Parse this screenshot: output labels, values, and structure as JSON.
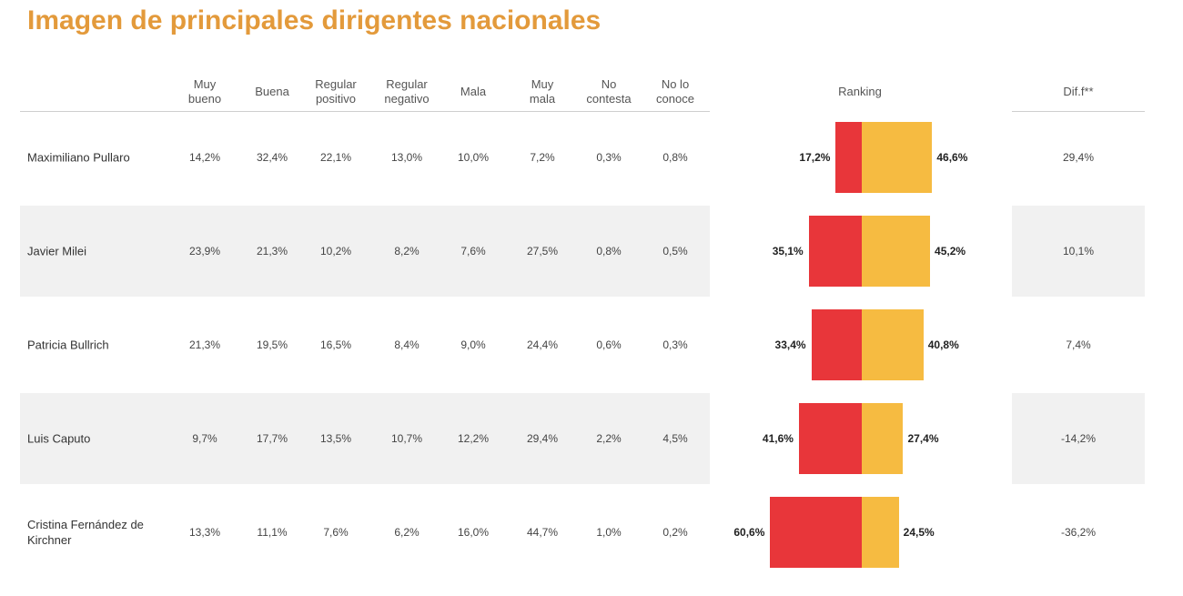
{
  "header": {
    "title": "Imagen de principales dirigentes nacionales"
  },
  "table": {
    "columns": [
      "Muy\nbueno",
      "Buena",
      "Regular\npositivo",
      "Regular\nnegativo",
      "Mala",
      "Muy\nmala",
      "No\ncontesta",
      "No lo\nconoce"
    ],
    "ranking_header": "Ranking",
    "dif_header": "Dif.f**",
    "rows": [
      {
        "name": "Maximiliano Pullaro",
        "values": [
          "14,2%",
          "32,4%",
          "22,1%",
          "13,0%",
          "10,0%",
          "7,2%",
          "0,3%",
          "0,8%"
        ],
        "ranking": {
          "negative": {
            "value": 17.2,
            "label": "17,2%"
          },
          "positive": {
            "value": 46.6,
            "label": "46,6%"
          }
        },
        "dif": "29,4%"
      },
      {
        "name": "Javier Milei",
        "values": [
          "23,9%",
          "21,3%",
          "10,2%",
          "8,2%",
          "7,6%",
          "27,5%",
          "0,8%",
          "0,5%"
        ],
        "ranking": {
          "negative": {
            "value": 35.1,
            "label": "35,1%"
          },
          "positive": {
            "value": 45.2,
            "label": "45,2%"
          }
        },
        "dif": "10,1%"
      },
      {
        "name": "Patricia Bullrich",
        "values": [
          "21,3%",
          "19,5%",
          "16,5%",
          "8,4%",
          "9,0%",
          "24,4%",
          "0,6%",
          "0,3%"
        ],
        "ranking": {
          "negative": {
            "value": 33.4,
            "label": "33,4%"
          },
          "positive": {
            "value": 40.8,
            "label": "40,8%"
          }
        },
        "dif": "7,4%"
      },
      {
        "name": "Luis Caputo",
        "values": [
          "9,7%",
          "17,7%",
          "13,5%",
          "10,7%",
          "12,2%",
          "29,4%",
          "2,2%",
          "4,5%"
        ],
        "ranking": {
          "negative": {
            "value": 41.6,
            "label": "41,6%"
          },
          "positive": {
            "value": 27.4,
            "label": "27,4%"
          }
        },
        "dif": "-14,2%"
      },
      {
        "name": "Cristina Fernández de Kirchner",
        "values": [
          "13,3%",
          "11,1%",
          "7,6%",
          "6,2%",
          "16,0%",
          "44,7%",
          "1,0%",
          "0,2%"
        ],
        "ranking": {
          "negative": {
            "value": 60.6,
            "label": "60,6%"
          },
          "positive": {
            "value": 24.5,
            "label": "24,5%"
          }
        },
        "dif": "-36,2%"
      }
    ]
  }
}
